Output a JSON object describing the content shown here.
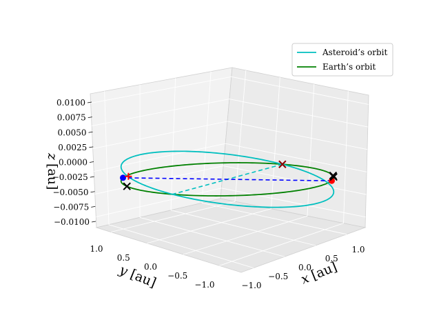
{
  "chart_data": {
    "type": "line",
    "projection": "3d",
    "grid": true,
    "legend_position": "top-right",
    "axes": {
      "x": {
        "var": "x",
        "unit": "[au]",
        "ticks": [
          -1.0,
          -0.5,
          0.0,
          0.5,
          1.0
        ],
        "tick_labels": [
          "−1.0",
          "−0.5",
          "0.0",
          "0.5",
          "1.0"
        ]
      },
      "y": {
        "var": "y",
        "unit": "[au]",
        "ticks": [
          -1.0,
          -0.5,
          0.0,
          0.5,
          1.0
        ],
        "tick_labels": [
          "−1.0",
          "−0.5",
          "0.0",
          "0.5",
          "1.0"
        ]
      },
      "z": {
        "var": "z",
        "unit": "[au]",
        "ticks": [
          -0.01,
          -0.0075,
          -0.005,
          -0.0025,
          0.0,
          0.0025,
          0.005,
          0.0075,
          0.01
        ],
        "tick_labels": [
          "−0.0100",
          "−0.0075",
          "−0.0050",
          "−0.0025",
          "0.0000",
          "0.0025",
          "0.0050",
          "0.0075",
          "0.0100"
        ]
      }
    },
    "series": [
      {
        "name": "Asteroid’s orbit",
        "color": "#00bfbf",
        "kind": "ellipse",
        "center": [
          0,
          0,
          0
        ],
        "radius": 1.0,
        "tilt_z_amplitude": 0.0115,
        "node_angle_deg": 20
      },
      {
        "name": "Earth’s orbit",
        "color": "#008000",
        "kind": "circle",
        "center": [
          0,
          0,
          0
        ],
        "radius": 1.0
      }
    ],
    "lines_of_nodes": [
      {
        "color": "#00bfbf",
        "style": "dashed",
        "from": [
          0.94,
          0.34,
          0
        ],
        "to": [
          -0.94,
          -0.34,
          0
        ]
      },
      {
        "color": "#0000ff",
        "style": "dashed",
        "from": [
          0.64,
          -0.77,
          0
        ],
        "to": [
          -0.64,
          0.77,
          0
        ]
      }
    ],
    "markers": [
      {
        "symbol": "dot",
        "color": "#ff0000",
        "position": [
          0.64,
          -0.77,
          0
        ]
      },
      {
        "symbol": "dot",
        "color": "#0000ff",
        "position": [
          -0.64,
          0.77,
          0
        ]
      },
      {
        "symbol": "plus",
        "color": "#ff0000",
        "position": [
          -0.55,
          0.8,
          0
        ]
      },
      {
        "symbol": "cross",
        "color": "#000000",
        "position": [
          -0.94,
          0.34,
          0
        ]
      },
      {
        "symbol": "cross",
        "color": "#000000",
        "position": [
          0.85,
          -0.53,
          0
        ]
      },
      {
        "symbol": "cross",
        "color": "#000000",
        "position": [
          0.8,
          -0.6,
          0
        ]
      },
      {
        "symbol": "cross",
        "color": "#8b0000",
        "position": [
          0.94,
          0.34,
          0
        ]
      }
    ]
  }
}
